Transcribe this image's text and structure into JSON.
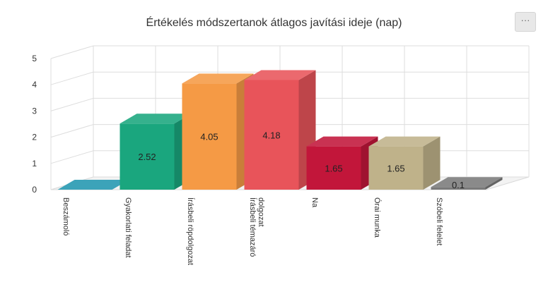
{
  "title": "Értékelés módszertanok átlagos javítási ideje (nap)",
  "menu": {
    "icon": "ellipsis-icon",
    "label": "···"
  },
  "chart_data": {
    "type": "bar",
    "three_d": true,
    "title": "Értékelés módszertanok átlagos javítási ideje (nap)",
    "xlabel": "",
    "ylabel": "",
    "ylim": [
      0,
      5
    ],
    "yticks": [
      0,
      1,
      2,
      3,
      4,
      5
    ],
    "grid": true,
    "legend": "none",
    "categories": [
      "Beszámoló",
      "Gyakorlati feladat",
      "Írásbeli röpdolgozat",
      "Írásbeli témazáró dolgozat",
      "Na",
      "Órai munka",
      "Szóbeli felelet"
    ],
    "category_lines": [
      [
        "Beszámoló"
      ],
      [
        "Gyakorlati feladat"
      ],
      [
        "Írásbeli röpdolgozat"
      ],
      [
        "Írásbeli témazáró",
        "dolgozat"
      ],
      [
        "Na"
      ],
      [
        "Órai munka"
      ],
      [
        "Szóbeli felelet"
      ]
    ],
    "values": [
      0,
      2.52,
      4.05,
      4.18,
      1.65,
      1.65,
      0.1
    ],
    "data_labels": [
      "",
      "2.52",
      "4.05",
      "4.18",
      "1.65",
      "1.65",
      "0.1"
    ],
    "colors": [
      "#2196b0",
      "#1aa67e",
      "#f59a45",
      "#e8545a",
      "#c2163a",
      "#bfb28a",
      "#7a7a7a"
    ]
  }
}
